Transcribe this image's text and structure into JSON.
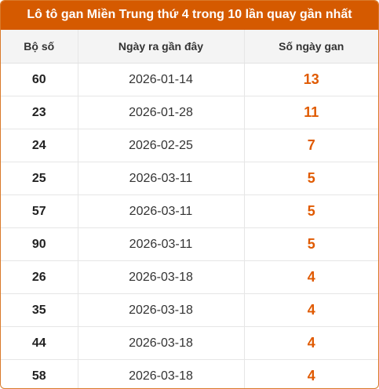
{
  "title": "Lô tô gan Miền Trung thứ 4 trong 10 lần quay gần nhất",
  "headers": {
    "number": "Bộ số",
    "last_date": "Ngày ra gần đây",
    "gap_days": "Số ngày gan"
  },
  "rows": [
    {
      "number": "60",
      "last_date": "2026-01-14",
      "gap_days": "13"
    },
    {
      "number": "23",
      "last_date": "2026-01-28",
      "gap_days": "11"
    },
    {
      "number": "24",
      "last_date": "2026-02-25",
      "gap_days": "7"
    },
    {
      "number": "25",
      "last_date": "2026-03-11",
      "gap_days": "5"
    },
    {
      "number": "57",
      "last_date": "2026-03-11",
      "gap_days": "5"
    },
    {
      "number": "90",
      "last_date": "2026-03-11",
      "gap_days": "5"
    },
    {
      "number": "26",
      "last_date": "2026-03-18",
      "gap_days": "4"
    },
    {
      "number": "35",
      "last_date": "2026-03-18",
      "gap_days": "4"
    },
    {
      "number": "44",
      "last_date": "2026-03-18",
      "gap_days": "4"
    },
    {
      "number": "58",
      "last_date": "2026-03-18",
      "gap_days": "4"
    }
  ],
  "colors": {
    "title_bg": "#d55a00",
    "accent_value": "#e05a00",
    "header_bg": "#f4f4f4"
  }
}
